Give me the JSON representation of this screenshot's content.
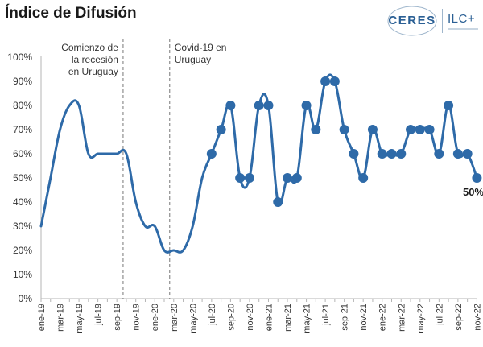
{
  "header": {
    "title": "Índice de Difusión",
    "logo_ceres": "CERES",
    "logo_ilc": "ILC+"
  },
  "annotations": [
    {
      "text_lines": [
        "Comienzo de",
        "la recesión",
        "en Uruguay"
      ],
      "at_x": "oct-19"
    },
    {
      "text_lines": [
        "Covid-19 en",
        "Uruguay"
      ],
      "at_x": "mar-20"
    }
  ],
  "chart_data": {
    "type": "line",
    "title": "Índice de Difusión",
    "xlabel": "",
    "ylabel": "",
    "ylim": [
      0,
      100
    ],
    "y_ticks": [
      "0%",
      "10%",
      "20%",
      "30%",
      "40%",
      "50%",
      "60%",
      "70%",
      "80%",
      "90%",
      "100%"
    ],
    "x_tick_labels": [
      "ene-19",
      "mar-19",
      "may-19",
      "jul-19",
      "sep-19",
      "nov-19",
      "ene-20",
      "mar-20",
      "may-20",
      "jul-20",
      "sep-20",
      "nov-20",
      "ene-21",
      "mar-21",
      "may-21",
      "jul-21",
      "sep-21",
      "nov-21",
      "ene-22",
      "mar-22",
      "may-22",
      "jul-22",
      "sep-22",
      "nov-22"
    ],
    "grid": false,
    "end_label": "50%",
    "color": "#2e6aa8",
    "marker_start": "jul-20",
    "series": [
      {
        "x": [
          "ene-19",
          "feb-19",
          "mar-19",
          "abr-19",
          "may-19",
          "jun-19",
          "jul-19",
          "ago-19",
          "sep-19",
          "oct-19",
          "nov-19",
          "dic-19",
          "ene-20",
          "feb-20",
          "mar-20",
          "abr-20",
          "may-20",
          "jun-20",
          "jul-20",
          "ago-20",
          "sep-20",
          "oct-20",
          "nov-20",
          "dic-20",
          "ene-21",
          "feb-21",
          "mar-21",
          "abr-21",
          "may-21",
          "jun-21",
          "jul-21",
          "ago-21",
          "sep-21",
          "oct-21",
          "nov-21",
          "dic-21",
          "ene-22",
          "feb-22",
          "mar-22",
          "abr-22",
          "may-22",
          "jun-22",
          "jul-22",
          "ago-22",
          "sep-22",
          "oct-22",
          "nov-22"
        ],
        "values": [
          30,
          50,
          70,
          80,
          80,
          60,
          60,
          60,
          60,
          60,
          40,
          30,
          30,
          20,
          20,
          20,
          30,
          50,
          60,
          70,
          80,
          50,
          50,
          80,
          80,
          40,
          50,
          50,
          80,
          70,
          90,
          90,
          70,
          60,
          50,
          70,
          60,
          60,
          60,
          70,
          70,
          70,
          60,
          80,
          60,
          60,
          50
        ]
      }
    ]
  }
}
